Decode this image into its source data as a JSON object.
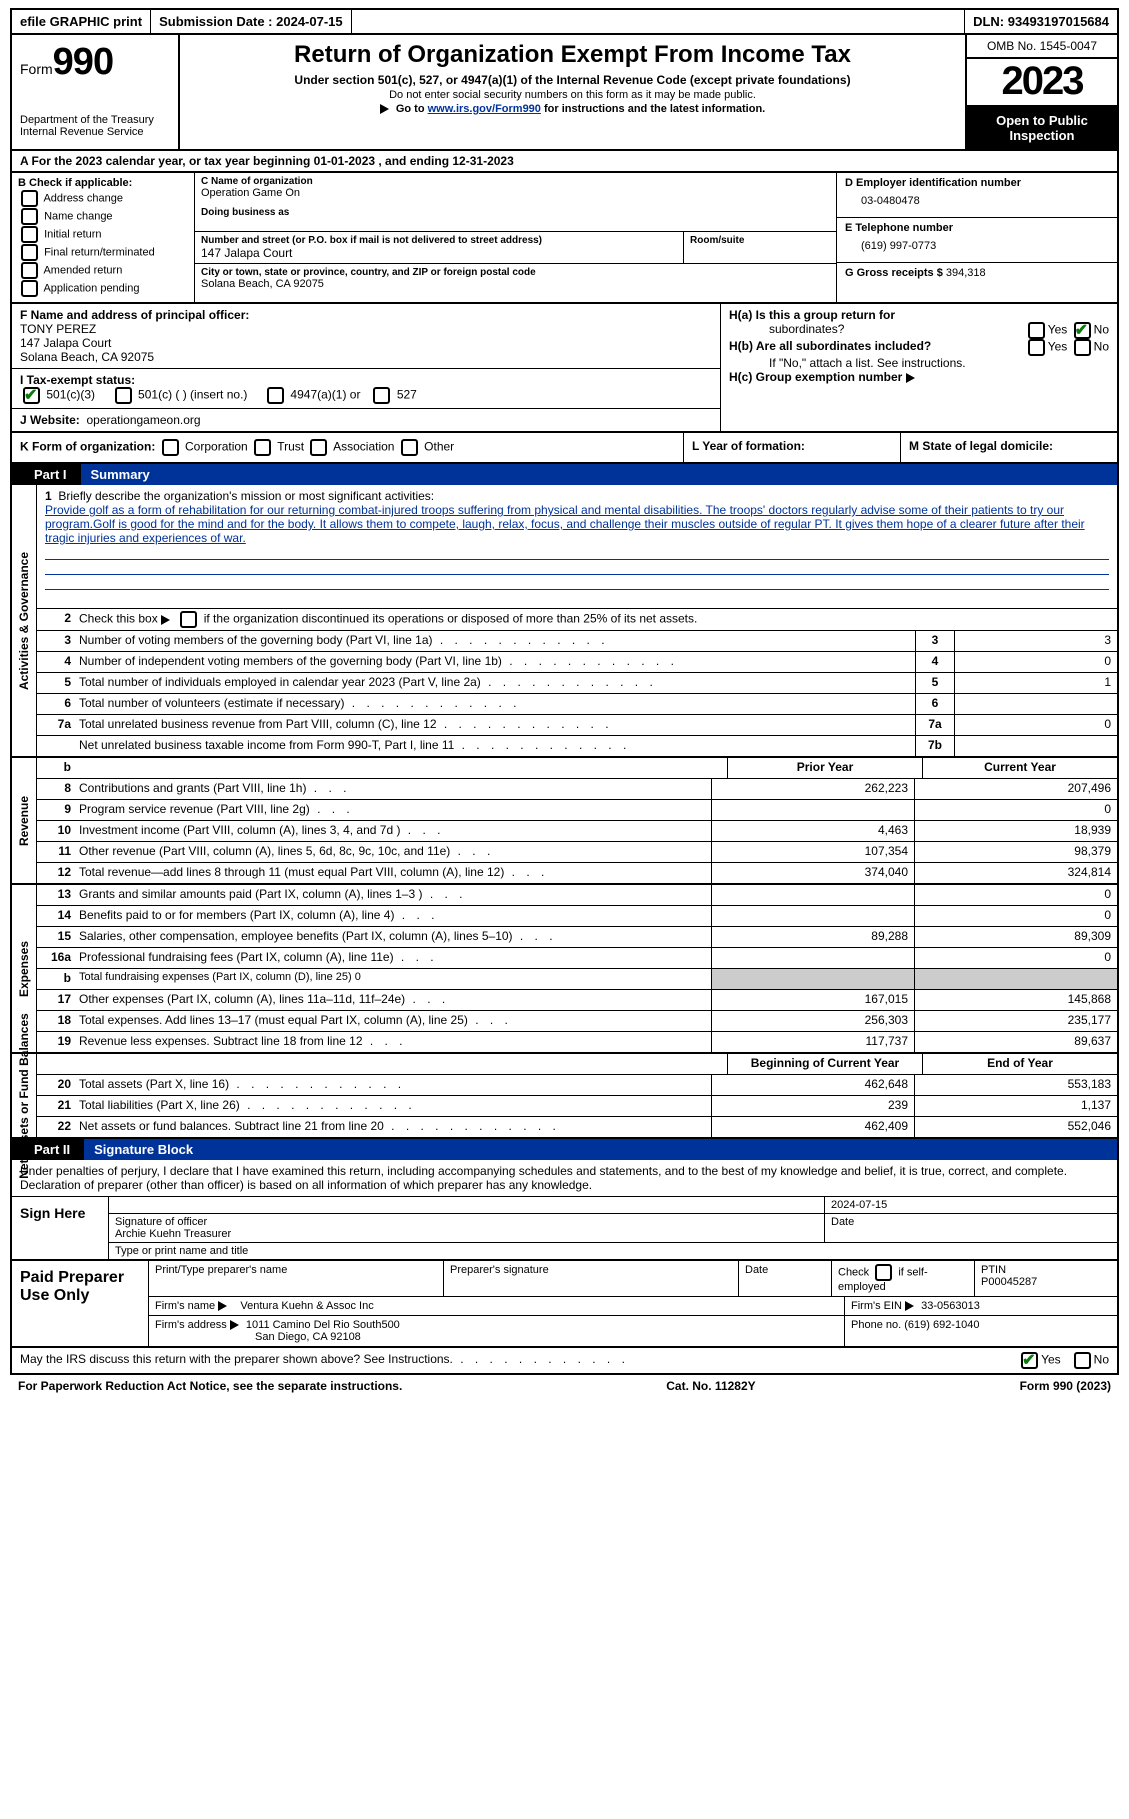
{
  "topbar": {
    "efile": "efile GRAPHIC print",
    "sub_label": "Submission Date :",
    "sub_date": "2024-07-15",
    "dln_label": "DLN:",
    "dln": "93493197015684"
  },
  "header": {
    "form_word": "Form",
    "form_num": "990",
    "dept": "Department of the Treasury Internal Revenue Service",
    "title": "Return of Organization Exempt From Income Tax",
    "sub1": "Under section 501(c), 527, or 4947(a)(1) of the Internal Revenue Code (except private foundations)",
    "sub2": "Do not enter social security numbers on this form as it may be made public.",
    "sub3_pre": "Go to ",
    "sub3_link": "www.irs.gov/Form990",
    "sub3_post": " for instructions and the latest information.",
    "omb": "OMB No. 1545-0047",
    "year": "2023",
    "insp": "Open to Public Inspection"
  },
  "lineA": "A For the 2023 calendar year, or tax year beginning 01-01-2023    , and ending 12-31-2023",
  "colB": {
    "hdr": "B Check if applicable:",
    "opts": [
      "Address change",
      "Name change",
      "Initial return",
      "Final return/terminated",
      "Amended return",
      "Application pending"
    ]
  },
  "colC": {
    "name_label": "C Name of organization",
    "name": "Operation Game On",
    "dba_label": "Doing business as",
    "addr_label": "Number and street (or P.O. box if mail is not delivered to street address)",
    "addr": "147 Jalapa Court",
    "suite_label": "Room/suite",
    "city_label": "City or town, state or province, country, and ZIP or foreign postal code",
    "city": "Solana Beach, CA  92075"
  },
  "colD": {
    "ein_label": "D Employer identification number",
    "ein": "03-0480478",
    "tel_label": "E Telephone number",
    "tel": "(619) 997-0773",
    "gross_label": "G Gross receipts $",
    "gross": "394,318"
  },
  "rowF": {
    "label": "F Name and address of principal officer:",
    "name": "TONY PEREZ",
    "addr1": "147 Jalapa Court",
    "addr2": "Solana Beach, CA  92075"
  },
  "rowH": {
    "a_q": "H(a)  Is this a group return for",
    "a_q2": "subordinates?",
    "yes": "Yes",
    "no": "No",
    "b_q": "H(b)  Are all subordinates included?",
    "b_note": "If \"No,\" attach a list. See instructions.",
    "c_q": "H(c)  Group exemption number"
  },
  "rowI": {
    "label": "I    Tax-exempt status:",
    "opt1": "501(c)(3)",
    "opt2": "501(c) (  ) (insert no.)",
    "opt3": "4947(a)(1) or",
    "opt4": "527"
  },
  "rowJ": {
    "label": "J   Website:",
    "val": "operationgameon.org"
  },
  "rowK": {
    "label": "K Form of organization:",
    "opts": [
      "Corporation",
      "Trust",
      "Association",
      "Other"
    ]
  },
  "rowL": "L Year of formation:",
  "rowM": "M State of legal domicile:",
  "part1": {
    "box": "Part I",
    "title": "Summary"
  },
  "mission": {
    "num": "1",
    "label": "Briefly describe the organization's mission or most significant activities:",
    "text": "Provide golf as a form of rehabilitation for our returning combat-injured troops suffering from physical and mental disabilities. The troops' doctors regularly advise some of their patients to try our program.Golf is good for the mind and for the body. It allows them to compete, laugh, relax, focus, and challenge their muscles outside of regular PT. It gives them hope of a clearer future after their tragic injuries and experiences of war."
  },
  "vtabs": {
    "gov": "Activities & Governance",
    "rev": "Revenue",
    "exp": "Expenses",
    "net": "Net Assets or Fund Balances"
  },
  "lines_gov": [
    {
      "n": "2",
      "t": "Check this box      if the organization discontinued its operations or disposed of more than 25% of its net assets."
    },
    {
      "n": "3",
      "t": "Number of voting members of the governing body (Part VI, line 1a)",
      "box": "3",
      "v": "3"
    },
    {
      "n": "4",
      "t": "Number of independent voting members of the governing body (Part VI, line 1b)",
      "box": "4",
      "v": "0"
    },
    {
      "n": "5",
      "t": "Total number of individuals employed in calendar year 2023 (Part V, line 2a)",
      "box": "5",
      "v": "1"
    },
    {
      "n": "6",
      "t": "Total number of volunteers (estimate if necessary)",
      "box": "6",
      "v": ""
    },
    {
      "n": "7a",
      "t": "Total unrelated business revenue from Part VIII, column (C), line 12",
      "box": "7a",
      "v": "0"
    },
    {
      "n": "",
      "t": "Net unrelated business taxable income from Form 990-T, Part I, line 11",
      "box": "7b",
      "v": ""
    }
  ],
  "yr_hdr": {
    "b": "b",
    "prior": "Prior Year",
    "curr": "Current Year"
  },
  "lines_rev": [
    {
      "n": "8",
      "t": "Contributions and grants (Part VIII, line 1h)",
      "p": "262,223",
      "c": "207,496"
    },
    {
      "n": "9",
      "t": "Program service revenue (Part VIII, line 2g)",
      "p": "",
      "c": "0"
    },
    {
      "n": "10",
      "t": "Investment income (Part VIII, column (A), lines 3, 4, and 7d )",
      "p": "4,463",
      "c": "18,939"
    },
    {
      "n": "11",
      "t": "Other revenue (Part VIII, column (A), lines 5, 6d, 8c, 9c, 10c, and 11e)",
      "p": "107,354",
      "c": "98,379"
    },
    {
      "n": "12",
      "t": "Total revenue—add lines 8 through 11 (must equal Part VIII, column (A), line 12)",
      "p": "374,040",
      "c": "324,814"
    }
  ],
  "lines_exp": [
    {
      "n": "13",
      "t": "Grants and similar amounts paid (Part IX, column (A), lines 1–3 )",
      "p": "",
      "c": "0"
    },
    {
      "n": "14",
      "t": "Benefits paid to or for members (Part IX, column (A), line 4)",
      "p": "",
      "c": "0"
    },
    {
      "n": "15",
      "t": "Salaries, other compensation, employee benefits (Part IX, column (A), lines 5–10)",
      "p": "89,288",
      "c": "89,309"
    },
    {
      "n": "16a",
      "t": "Professional fundraising fees (Part IX, column (A), line 11e)",
      "p": "",
      "c": "0"
    },
    {
      "n": "b",
      "t": "Total fundraising expenses (Part IX, column (D), line 25) 0",
      "shaded": true
    },
    {
      "n": "17",
      "t": "Other expenses (Part IX, column (A), lines 11a–11d, 11f–24e)",
      "p": "167,015",
      "c": "145,868"
    },
    {
      "n": "18",
      "t": "Total expenses. Add lines 13–17 (must equal Part IX, column (A), line 25)",
      "p": "256,303",
      "c": "235,177"
    },
    {
      "n": "19",
      "t": "Revenue less expenses. Subtract line 18 from line 12",
      "p": "117,737",
      "c": "89,637"
    }
  ],
  "net_hdr": {
    "beg": "Beginning of Current Year",
    "end": "End of Year"
  },
  "lines_net": [
    {
      "n": "20",
      "t": "Total assets (Part X, line 16)",
      "p": "462,648",
      "c": "553,183"
    },
    {
      "n": "21",
      "t": "Total liabilities (Part X, line 26)",
      "p": "239",
      "c": "1,137"
    },
    {
      "n": "22",
      "t": "Net assets or fund balances. Subtract line 21 from line 20",
      "p": "462,409",
      "c": "552,046"
    }
  ],
  "part2": {
    "box": "Part II",
    "title": "Signature Block"
  },
  "sig": {
    "intro": "Under penalties of perjury, I declare that I have examined this return, including accompanying schedules and statements, and to the best of my knowledge and belief, it is true, correct, and complete. Declaration of preparer (other than officer) is based on all information of which preparer has any knowledge.",
    "here": "Sign Here",
    "date": "2024-07-15",
    "sig_label": "Signature of officer",
    "date_label": "Date",
    "name": "Archie Kuehn  Treasurer",
    "name_label": "Type or print name and title"
  },
  "prep": {
    "left": "Paid Preparer Use Only",
    "h1": "Print/Type preparer's name",
    "h2": "Preparer's signature",
    "h3": "Date",
    "h4_a": "Check",
    "h4_b": "if self-employed",
    "h5": "PTIN",
    "ptin": "P00045287",
    "firm_l": "Firm's name",
    "firm": "Ventura Kuehn & Assoc Inc",
    "fein_l": "Firm's EIN",
    "fein": "33-0563013",
    "addr_l": "Firm's address",
    "addr1": "1011 Camino Del Rio South500",
    "addr2": "San Diego, CA  92108",
    "phone_l": "Phone no.",
    "phone": "(619) 692-1040"
  },
  "may": {
    "q": "May the IRS discuss this return with the preparer shown above? See Instructions.",
    "yes": "Yes",
    "no": "No"
  },
  "footer": {
    "left": "For Paperwork Reduction Act Notice, see the separate instructions.",
    "mid": "Cat. No. 11282Y",
    "right_a": "Form ",
    "right_b": "990",
    "right_c": " (2023)"
  }
}
